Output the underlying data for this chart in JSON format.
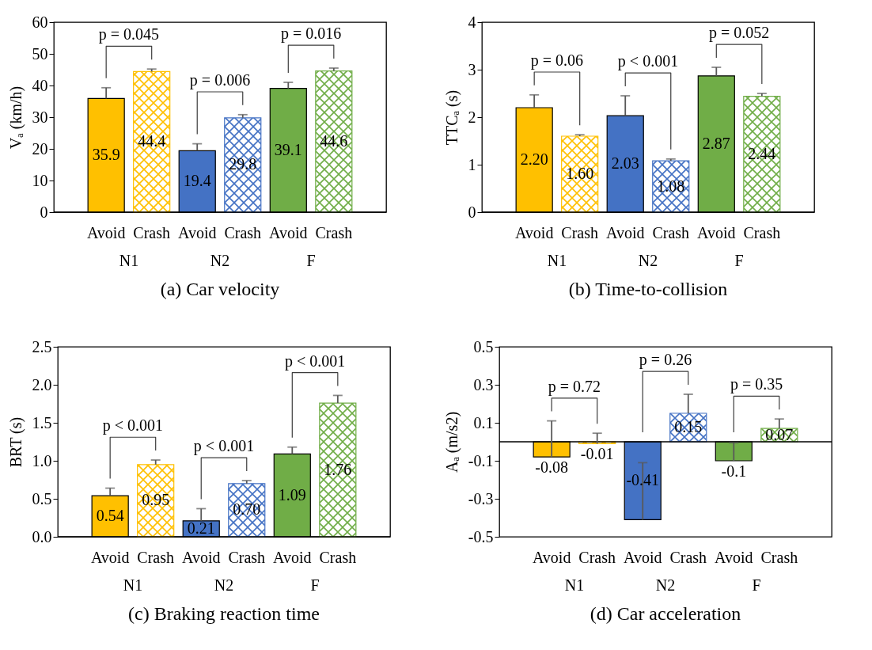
{
  "chart_data": [
    {
      "type": "bar",
      "title": "(a) Car velocity",
      "ylabel": "Vₐ (km/h)",
      "categories": [
        "Avoid",
        "Crash",
        "Avoid",
        "Crash",
        "Avoid",
        "Crash"
      ],
      "values": [
        35.9,
        44.4,
        19.4,
        29.8,
        39.1,
        44.6
      ],
      "value_labels": [
        "35.9",
        "44.4",
        "19.4",
        "29.8",
        "39.1",
        "44.6"
      ],
      "colors": [
        "#ffc000",
        "#ffc000",
        "#4472c4",
        "#4472c4",
        "#70ad47",
        "#70ad47"
      ],
      "errors": [
        [
          35.9,
          39.3
        ],
        [
          44.4,
          45.2
        ],
        [
          19.4,
          21.6
        ],
        [
          29.8,
          30.8
        ],
        [
          39.1,
          41.0
        ],
        [
          44.6,
          45.5
        ]
      ],
      "ylim": [
        0,
        60
      ],
      "yticks": [
        0,
        10,
        20,
        30,
        40,
        50,
        60
      ],
      "annotations": [
        "p = 0.045",
        "p = 0.006",
        "p = 0.016",
        "N1",
        "N2",
        "F"
      ]
    },
    {
      "type": "bar",
      "title": "(b) Time-to-collision",
      "ylabel": "TTCₐ (s)",
      "categories": [
        "Avoid",
        "Crash",
        "Avoid",
        "Crash",
        "Avoid",
        "Crash"
      ],
      "values": [
        2.2,
        1.6,
        2.03,
        1.08,
        2.87,
        2.44
      ],
      "value_labels": [
        "2.20",
        "1.60",
        "2.03",
        "1.08",
        "2.87",
        "2.44"
      ],
      "colors": [
        "#ffc000",
        "#ffc000",
        "#4472c4",
        "#4472c4",
        "#70ad47",
        "#70ad47"
      ],
      "errors": [
        [
          2.2,
          2.47
        ],
        [
          1.6,
          1.63
        ],
        [
          2.03,
          2.45
        ],
        [
          1.08,
          1.12
        ],
        [
          2.87,
          3.05
        ],
        [
          2.44,
          2.5
        ]
      ],
      "ylim": [
        0,
        4
      ],
      "yticks": [
        0,
        1,
        2,
        3,
        4
      ],
      "annotations": [
        "p = 0.06",
        "p < 0.001",
        "p = 0.052",
        "N1",
        "N2",
        "F"
      ]
    },
    {
      "type": "bar",
      "title": "(c) Braking reaction time",
      "ylabel": "BRT (s)",
      "categories": [
        "Avoid",
        "Crash",
        "Avoid",
        "Crash",
        "Avoid",
        "Crash"
      ],
      "values": [
        0.54,
        0.95,
        0.21,
        0.7,
        1.09,
        1.76
      ],
      "value_labels": [
        "0.54",
        "0.95",
        "0.21",
        "0.70",
        "1.09",
        "1.76"
      ],
      "colors": [
        "#ffc000",
        "#ffc000",
        "#4472c4",
        "#4472c4",
        "#70ad47",
        "#70ad47"
      ],
      "errors": [
        [
          0.54,
          0.64
        ],
        [
          0.95,
          1.01
        ],
        [
          0.21,
          0.37
        ],
        [
          0.7,
          0.74
        ],
        [
          1.09,
          1.18
        ],
        [
          1.76,
          1.86
        ]
      ],
      "ylim": [
        0,
        2.5
      ],
      "yticks": [
        {
          "value": 0,
          "label": "0.0"
        },
        {
          "value": 0.5,
          "label": "0.5"
        },
        {
          "value": 1,
          "label": "1.0"
        },
        {
          "value": 1.5,
          "label": "1.5"
        },
        {
          "value": 2,
          "label": "2.0"
        },
        {
          "value": 2.5,
          "label": "2.5"
        }
      ],
      "annotations": [
        "p < 0.001",
        "p < 0.001",
        "p < 0.001",
        "N1",
        "N2",
        "F"
      ]
    },
    {
      "type": "bar",
      "title": "(d) Car acceleration",
      "ylabel": "Aₐ (m/s2)",
      "categories": [
        "Avoid",
        "Crash",
        "Avoid",
        "Crash",
        "Avoid",
        "Crash"
      ],
      "values": [
        -0.08,
        -0.01,
        -0.41,
        0.15,
        -0.1,
        0.07
      ],
      "value_labels": [
        "-0.08",
        "-0.01",
        "-0.41",
        "0.15",
        "-0.1",
        "0.07"
      ],
      "colors": [
        "#ffc000",
        "#ffc000",
        "#4472c4",
        "#4472c4",
        "#70ad47",
        "#70ad47"
      ],
      "errors": [
        [
          -0.08,
          0.11
        ],
        [
          -0.01,
          0.045
        ],
        [
          -0.41,
          -0.11
        ],
        [
          0.15,
          0.25
        ],
        [
          -0.1,
          -0.005
        ],
        [
          0.07,
          0.12
        ]
      ],
      "ylim": [
        -0.5,
        0.5
      ],
      "yticks": [
        -0.5,
        -0.3,
        -0.1,
        0.1,
        0.3,
        0.5
      ],
      "annotations": [
        "p = 0.72",
        "p = 0.26",
        "p = 0.35",
        "N1",
        "N2",
        "F"
      ]
    }
  ]
}
